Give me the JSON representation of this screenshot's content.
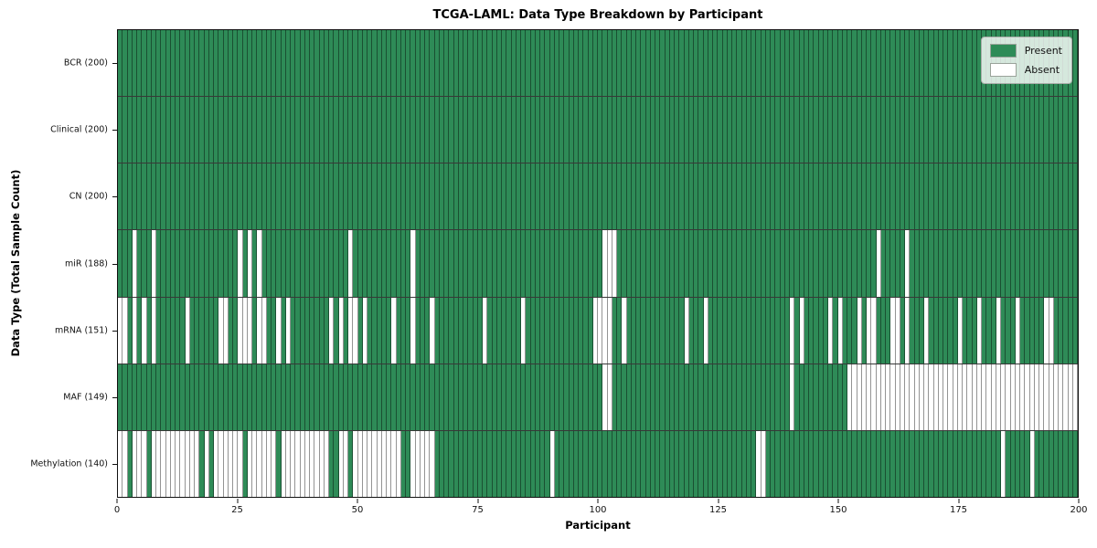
{
  "chart_data": {
    "type": "heatmap",
    "title": "TCGA-LAML: Data Type Breakdown by Participant",
    "xlabel": "Participant",
    "ylabel": "Data Type (Total Sample Count)",
    "n_participants": 200,
    "x_ticks": [
      0,
      25,
      50,
      75,
      100,
      125,
      150,
      175,
      200
    ],
    "colors": {
      "present": "#2e8b57",
      "absent": "#ffffff",
      "cell_edge": "rgba(0,0,0,0.42)",
      "swatch_edge": "#9aa39a"
    },
    "legend": [
      {
        "label": "Present",
        "color": "#2e8b57"
      },
      {
        "label": "Absent",
        "color": "#ffffff"
      }
    ],
    "rows": [
      {
        "label": "BCR (200)",
        "present_count": 200,
        "absent": []
      },
      {
        "label": "Clinical (200)",
        "present_count": 200,
        "absent": []
      },
      {
        "label": "CN (200)",
        "present_count": 200,
        "absent": []
      },
      {
        "label": "miR (188)",
        "present_count": 188,
        "absent": [
          3,
          7,
          25,
          27,
          29,
          48,
          61,
          101,
          102,
          103,
          158,
          164
        ]
      },
      {
        "label": "mRNA (151)",
        "present_count": 151,
        "absent": [
          0,
          1,
          3,
          5,
          7,
          14,
          21,
          22,
          25,
          26,
          27,
          29,
          30,
          33,
          35,
          44,
          46,
          48,
          49,
          51,
          57,
          61,
          65,
          76,
          84,
          99,
          100,
          101,
          102,
          105,
          118,
          122,
          140,
          142,
          148,
          150,
          154,
          156,
          157,
          161,
          162,
          164,
          168,
          175,
          179,
          183,
          187,
          193,
          194
        ]
      },
      {
        "label": "MAF (149)",
        "present_count": 149,
        "absent": [
          101,
          102,
          140,
          152,
          153,
          154,
          155,
          156,
          157,
          158,
          159,
          160,
          161,
          162,
          163,
          164,
          165,
          166,
          167,
          168,
          169,
          170,
          171,
          172,
          173,
          174,
          175,
          176,
          177,
          178,
          179,
          180,
          181,
          182,
          183,
          184,
          185,
          186,
          187,
          188,
          189,
          190,
          191,
          192,
          193,
          194,
          195,
          196,
          197,
          198,
          199
        ]
      },
      {
        "label": "Methylation (140)",
        "present_count": 140,
        "absent": [
          0,
          1,
          3,
          4,
          5,
          7,
          8,
          9,
          10,
          11,
          12,
          13,
          14,
          15,
          16,
          18,
          20,
          21,
          22,
          23,
          24,
          25,
          27,
          28,
          29,
          30,
          31,
          32,
          34,
          35,
          36,
          37,
          38,
          39,
          40,
          41,
          42,
          43,
          46,
          47,
          49,
          50,
          51,
          52,
          53,
          54,
          55,
          56,
          57,
          58,
          61,
          62,
          63,
          64,
          65,
          90,
          133,
          134,
          184,
          190
        ]
      }
    ]
  }
}
